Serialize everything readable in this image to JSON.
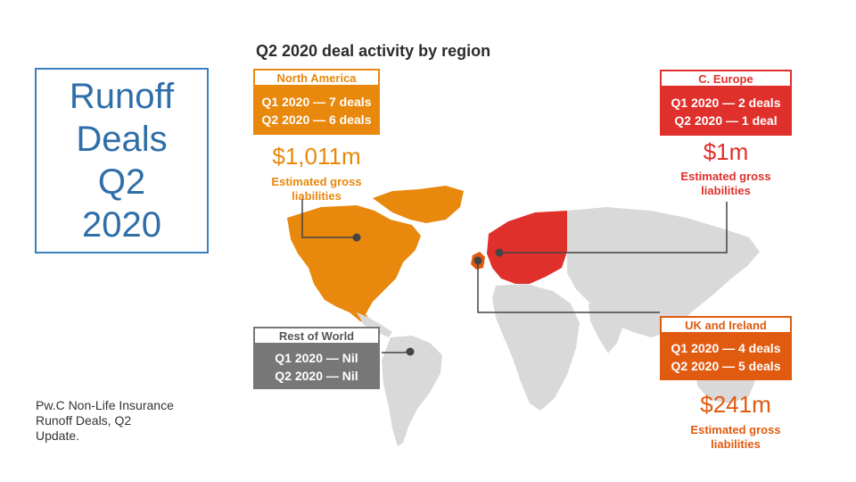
{
  "slide": {
    "title": "Runoff\nDeals\nQ2\n2020",
    "footer": "Pw.C Non-Life Insurance\nRunoff Deals, Q2\nUpdate."
  },
  "chart": {
    "title": "Q2 2020 deal activity by region"
  },
  "regions": {
    "north_america": {
      "name": "North America",
      "q1": "Q1 2020 — 7 deals",
      "q2": "Q2 2020 — 6 deals",
      "amount": "$1,011m",
      "amount_label": "Estimated gross\nliabilities",
      "color": "#e8880c"
    },
    "c_europe": {
      "name": "C. Europe",
      "q1": "Q1 2020 — 2 deals",
      "q2": "Q2 2020 — 1 deal",
      "amount": "$1m",
      "amount_label": "Estimated gross\nliabilities",
      "color": "#e0302b"
    },
    "rest_of_world": {
      "name": "Rest of World",
      "q1": "Q1 2020 — Nil",
      "q2": "Q2 2020 — Nil",
      "color": "#777777"
    },
    "uk_ireland": {
      "name": "UK and Ireland",
      "q1": "Q1 2020 — 4 deals",
      "q2": "Q2 2020 — 5 deals",
      "amount": "$241m",
      "amount_label": "Estimated gross\nliabilities",
      "color": "#e05a10"
    }
  }
}
